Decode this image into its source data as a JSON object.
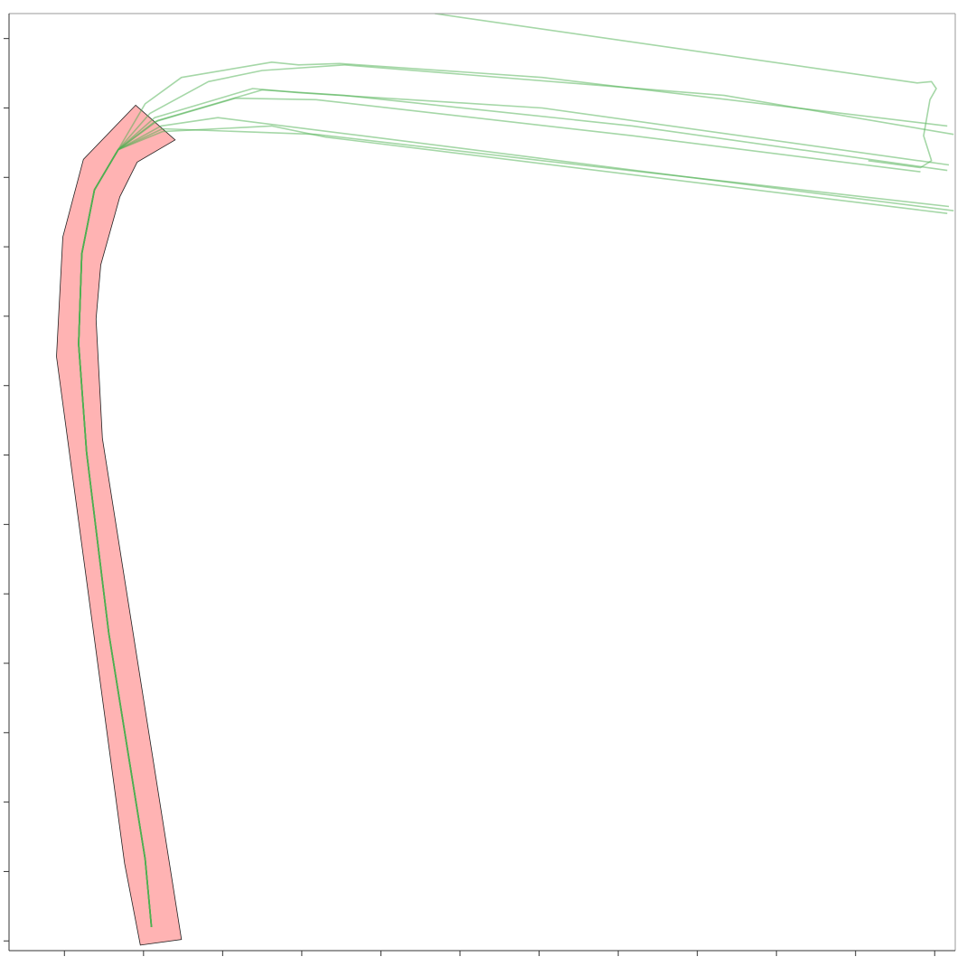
{
  "chart_data": {
    "type": "line",
    "xlim": [
      -0.35,
      5.63
    ],
    "ylim": [
      -0.07,
      6.68
    ],
    "xticks": [
      0,
      0.5,
      1,
      1.5,
      2,
      2.5,
      3,
      3.5,
      4,
      4.5,
      5,
      5.5
    ],
    "yticks": [
      0,
      0.5,
      1,
      1.5,
      2,
      2.5,
      3,
      3.5,
      4,
      4.5,
      5,
      5.5,
      6,
      6.5
    ],
    "region": {
      "color": "#ffb3b3",
      "x": [
        0.48,
        0.74,
        0.24,
        0.2,
        0.23,
        0.35,
        0.46,
        0.7,
        0.45,
        0.12,
        -0.01,
        -0.05,
        0.38
      ],
      "values": [
        -0.03,
        0.01,
        3.62,
        4.48,
        4.87,
        5.36,
        5.61,
        5.77,
        6.02,
        5.63,
        5.07,
        4.21,
        0.56
      ]
    },
    "series": [
      {
        "color": "#4caf50",
        "x": [
          0.55,
          0.51,
          0.28,
          0.14,
          0.09,
          0.11,
          0.19,
          0.34,
          0.51,
          0.74,
          1.31,
          1.48,
          1.74,
          3.02,
          5.58
        ],
        "values": [
          0.1,
          0.59,
          2.22,
          3.52,
          4.3,
          4.95,
          5.41,
          5.7,
          6.03,
          6.22,
          6.33,
          6.31,
          6.32,
          6.22,
          5.87
        ]
      },
      {
        "color": "#4caf50",
        "x": [
          0.55,
          0.51,
          0.28,
          0.14,
          0.09,
          0.11,
          0.19,
          0.34,
          0.54,
          0.91,
          1.25,
          1.77,
          4.17,
          5.62
        ],
        "values": [
          0.1,
          0.59,
          2.22,
          3.52,
          4.3,
          4.95,
          5.41,
          5.7,
          5.96,
          6.19,
          6.27,
          6.31,
          6.09,
          5.81
        ]
      },
      {
        "color": "#4caf50",
        "x": [
          0.55,
          0.51,
          0.28,
          0.14,
          0.09,
          0.11,
          0.19,
          0.34,
          0.57,
          1.19,
          1.48,
          3.02,
          5.59
        ],
        "values": [
          0.1,
          0.59,
          2.22,
          3.52,
          4.3,
          4.95,
          5.41,
          5.7,
          5.93,
          6.14,
          6.11,
          6.0,
          5.59
        ]
      },
      {
        "color": "#4caf50",
        "x": [
          0.55,
          0.51,
          0.28,
          0.14,
          0.09,
          0.11,
          0.19,
          0.34,
          0.59,
          1.25,
          1.77,
          3.59,
          5.58
        ],
        "values": [
          0.1,
          0.59,
          2.22,
          3.52,
          4.3,
          4.95,
          5.41,
          5.7,
          5.91,
          6.13,
          6.09,
          5.87,
          5.55
        ]
      },
      {
        "color": "#4caf50",
        "x": [
          0.55,
          0.51,
          0.28,
          0.14,
          0.09,
          0.11,
          0.19,
          0.34,
          0.57,
          1.08,
          1.59,
          3.59,
          5.41
        ],
        "values": [
          0.1,
          0.59,
          2.22,
          3.52,
          4.3,
          4.95,
          5.41,
          5.7,
          5.9,
          6.07,
          6.06,
          5.8,
          5.54
        ]
      },
      {
        "color": "#4caf50",
        "x": [
          0.55,
          0.51,
          0.28,
          0.14,
          0.09,
          0.11,
          0.19,
          0.34,
          0.61,
          0.97,
          1.88,
          5.62
        ],
        "values": [
          0.1,
          0.59,
          2.22,
          3.52,
          4.3,
          4.95,
          5.41,
          5.7,
          5.87,
          5.93,
          5.8,
          5.26
        ]
      },
      {
        "color": "#4caf50",
        "x": [
          0.55,
          0.51,
          0.28,
          0.14,
          0.09,
          0.11,
          0.19,
          0.34,
          0.62,
          1.31,
          1.65,
          5.58
        ],
        "values": [
          0.1,
          0.59,
          2.22,
          3.52,
          4.3,
          4.95,
          5.41,
          5.7,
          5.83,
          5.87,
          5.79,
          5.24
        ]
      },
      {
        "color": "#4caf50",
        "x": [
          0.55,
          0.51,
          0.28,
          0.14,
          0.09,
          0.11,
          0.19,
          0.34,
          0.62,
          1.59,
          3.02,
          5.59
        ],
        "values": [
          0.1,
          0.59,
          2.22,
          3.52,
          4.3,
          4.95,
          5.41,
          5.7,
          5.85,
          5.81,
          5.62,
          5.29
        ]
      },
      {
        "color": "#4caf50",
        "x": [
          2.34,
          5.39,
          5.48,
          5.51,
          5.47,
          5.43,
          5.48,
          5.41,
          5.08
        ],
        "values": [
          6.68,
          6.18,
          6.19,
          6.14,
          6.06,
          5.8,
          5.62,
          5.57,
          5.62
        ]
      }
    ]
  }
}
